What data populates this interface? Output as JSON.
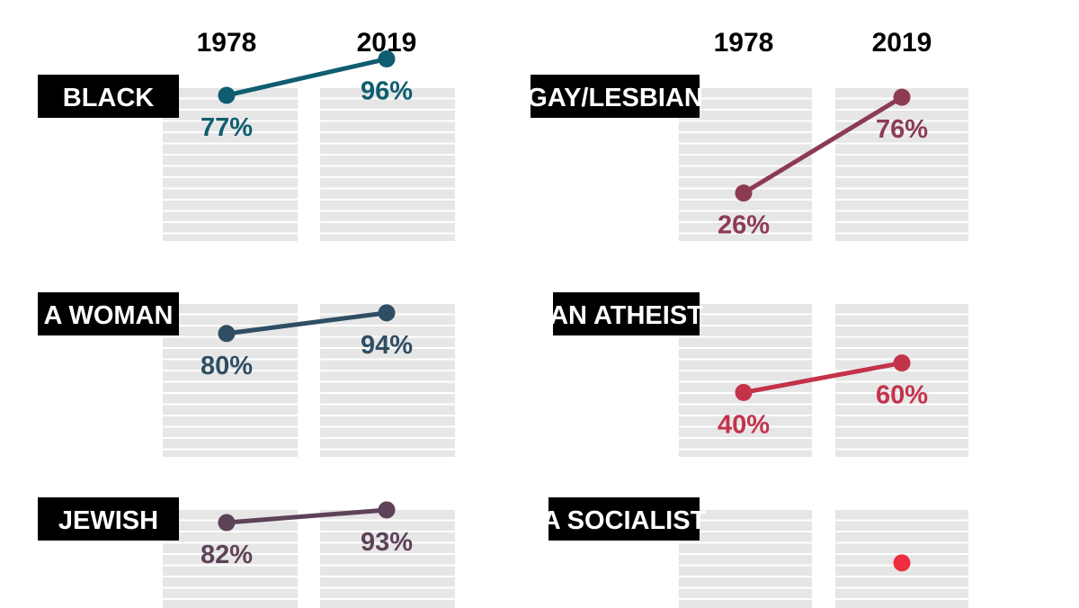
{
  "chart_data": {
    "type": "line",
    "x": [
      "1978",
      "2019"
    ],
    "ylim": [
      0,
      100
    ],
    "grid": true,
    "panels": [
      {
        "label": "BLACK",
        "values": [
          77,
          96
        ],
        "value_labels": [
          "77%",
          "96%"
        ],
        "color": "#0f5d70"
      },
      {
        "label": "A WOMAN",
        "values": [
          80,
          94
        ],
        "value_labels": [
          "80%",
          "94%"
        ],
        "color": "#2f4e63"
      },
      {
        "label": "JEWISH",
        "values": [
          82,
          93
        ],
        "value_labels": [
          "82%",
          "93%"
        ],
        "color": "#5d4258"
      },
      {
        "label": "GAY/LESBIAN",
        "values": [
          26,
          76
        ],
        "value_labels": [
          "26%",
          "76%"
        ],
        "color": "#8c3b52"
      },
      {
        "label": "AN ATHEIST",
        "values": [
          40,
          60
        ],
        "value_labels": [
          "40%",
          "60%"
        ],
        "color": "#c3334a"
      },
      {
        "label": "A SOCIALIST",
        "values": [
          null,
          47
        ],
        "value_labels": [
          "",
          ""
        ],
        "color": "#ee2e3e"
      }
    ]
  },
  "column_headers": {
    "left": [
      "1978",
      "2019"
    ],
    "right": [
      "1978",
      "2019"
    ]
  }
}
